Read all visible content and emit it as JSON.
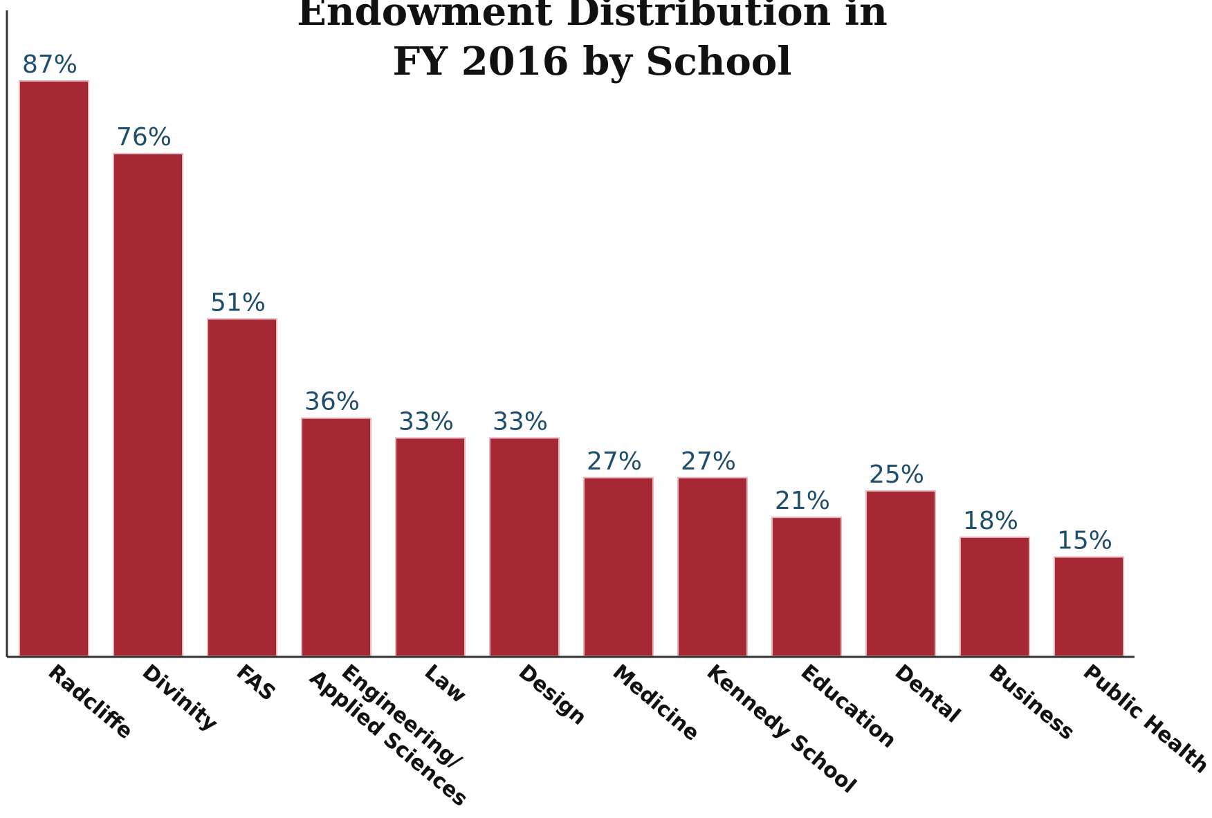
{
  "chart_data": {
    "type": "bar",
    "title_lines": [
      "Endowment Distribution in",
      "FY 2016 by School"
    ],
    "categories": [
      "Radcliffe",
      "Divinity",
      "FAS",
      "Engineering/\nApplied Sciences",
      "Law",
      "Design",
      "Medicine",
      "Kennedy School",
      "Education",
      "Dental",
      "Business",
      "Public Health"
    ],
    "values": [
      87,
      76,
      51,
      36,
      33,
      33,
      27,
      27,
      21,
      25,
      18,
      15
    ],
    "value_labels": [
      "87%",
      "76%",
      "51%",
      "36%",
      "33%",
      "33%",
      "27%",
      "27%",
      "21%",
      "25%",
      "18%",
      "15%"
    ],
    "unit": "%",
    "ylim": [
      0,
      87
    ],
    "grid": false,
    "legend": "none",
    "colors": {
      "bar": "#a52834",
      "bar_edge": "#e8b7bd",
      "value_label": "#1f4e6a",
      "title": "#111111",
      "axis": "#333333"
    }
  }
}
